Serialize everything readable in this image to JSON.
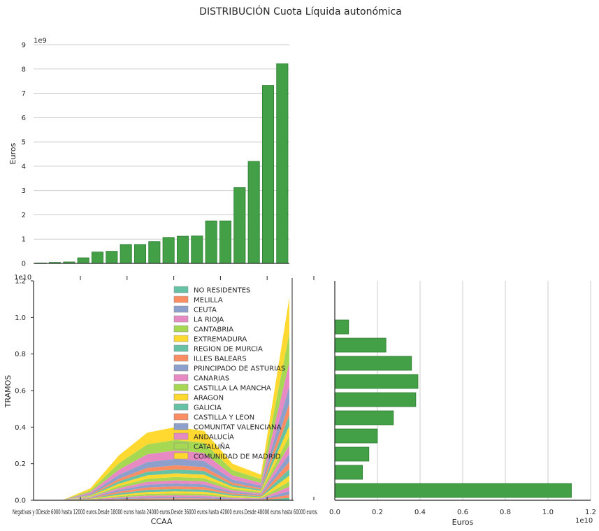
{
  "suptitle": "DISTRIBUCIÓN Cuota Líquida autonómica",
  "colors": {
    "bar": "#43a047",
    "bar_edge": "#2e7d32",
    "grid": "#cccccc",
    "palette": [
      "#66c2a5",
      "#fc8d62",
      "#8da0cb",
      "#e78ac3",
      "#a6d854",
      "#ffd92f"
    ]
  },
  "chart_data": [
    {
      "type": "bar",
      "panel": "top",
      "ylabel": "Euros",
      "xlabel": "",
      "offset_label": "1e9",
      "ylim": [
        0,
        9
      ],
      "yticks": [
        0,
        1,
        2,
        3,
        4,
        5,
        6,
        7,
        8,
        9
      ],
      "grid": "horizontal",
      "values": [
        0.02,
        0.04,
        0.06,
        0.23,
        0.47,
        0.5,
        0.78,
        0.78,
        0.9,
        1.07,
        1.12,
        1.13,
        1.75,
        1.75,
        3.12,
        4.2,
        7.32,
        8.22
      ]
    },
    {
      "type": "area",
      "panel": "bottom-left",
      "stacked": true,
      "xlabel": "CCAA",
      "ylabel": "TRAMOS",
      "offset_label": "1e10",
      "ylim": [
        0,
        1.2
      ],
      "yticks": [
        0.0,
        0.2,
        0.4,
        0.6,
        0.8,
        1.0,
        1.2
      ],
      "ytick_labels": [
        "0.0",
        "0.2",
        "0.4",
        "0.6",
        "0.8",
        "1.0",
        "1.2"
      ],
      "tick_labels_text": "Negativas y 0Desde 6000 hasta 12000 euros.Desde 18000 euros hasta 24000 euros.Desde 36000 euros hasta 42000 euros.Desde 48000 euros hasta 60000 euros.",
      "legend_position": "upper center",
      "totals": [
        0.0,
        0.0,
        0.065,
        0.245,
        0.37,
        0.4,
        0.38,
        0.2,
        0.14,
        1.11
      ],
      "series": [
        {
          "name": "NO RESIDENTES"
        },
        {
          "name": "MELILLA"
        },
        {
          "name": "CEUTA"
        },
        {
          "name": "LA RIOJA"
        },
        {
          "name": "CANTABRIA"
        },
        {
          "name": "EXTREMADURA"
        },
        {
          "name": "REGION DE MURCIA"
        },
        {
          "name": "ILLES BALEARS"
        },
        {
          "name": "PRINCIPADO DE ASTURIAS"
        },
        {
          "name": "CANARIAS"
        },
        {
          "name": "CASTILLA LA MANCHA"
        },
        {
          "name": "ARAGON"
        },
        {
          "name": "GALICIA"
        },
        {
          "name": "CASTILLA Y LEON"
        },
        {
          "name": "COMUNITAT VALENCIANA"
        },
        {
          "name": "ANDALUCÍA"
        },
        {
          "name": "CATALUÑA"
        },
        {
          "name": "COMUNIDAD DE MADRID"
        }
      ]
    },
    {
      "type": "bar",
      "orientation": "horizontal",
      "panel": "bottom-right",
      "xlabel": "Euros",
      "offset_label": "1e10",
      "xlim": [
        0,
        1.2
      ],
      "xticks": [
        0.0,
        0.2,
        0.4,
        0.6,
        0.8,
        1.0,
        1.2
      ],
      "xtick_labels": [
        "0.0",
        "0.2",
        "0.4",
        "0.6",
        "0.8",
        "1.0",
        "1.2"
      ],
      "grid": "vertical",
      "values": [
        0.065,
        0.24,
        0.36,
        0.39,
        0.38,
        0.275,
        0.2,
        0.16,
        0.13,
        1.11
      ]
    }
  ]
}
